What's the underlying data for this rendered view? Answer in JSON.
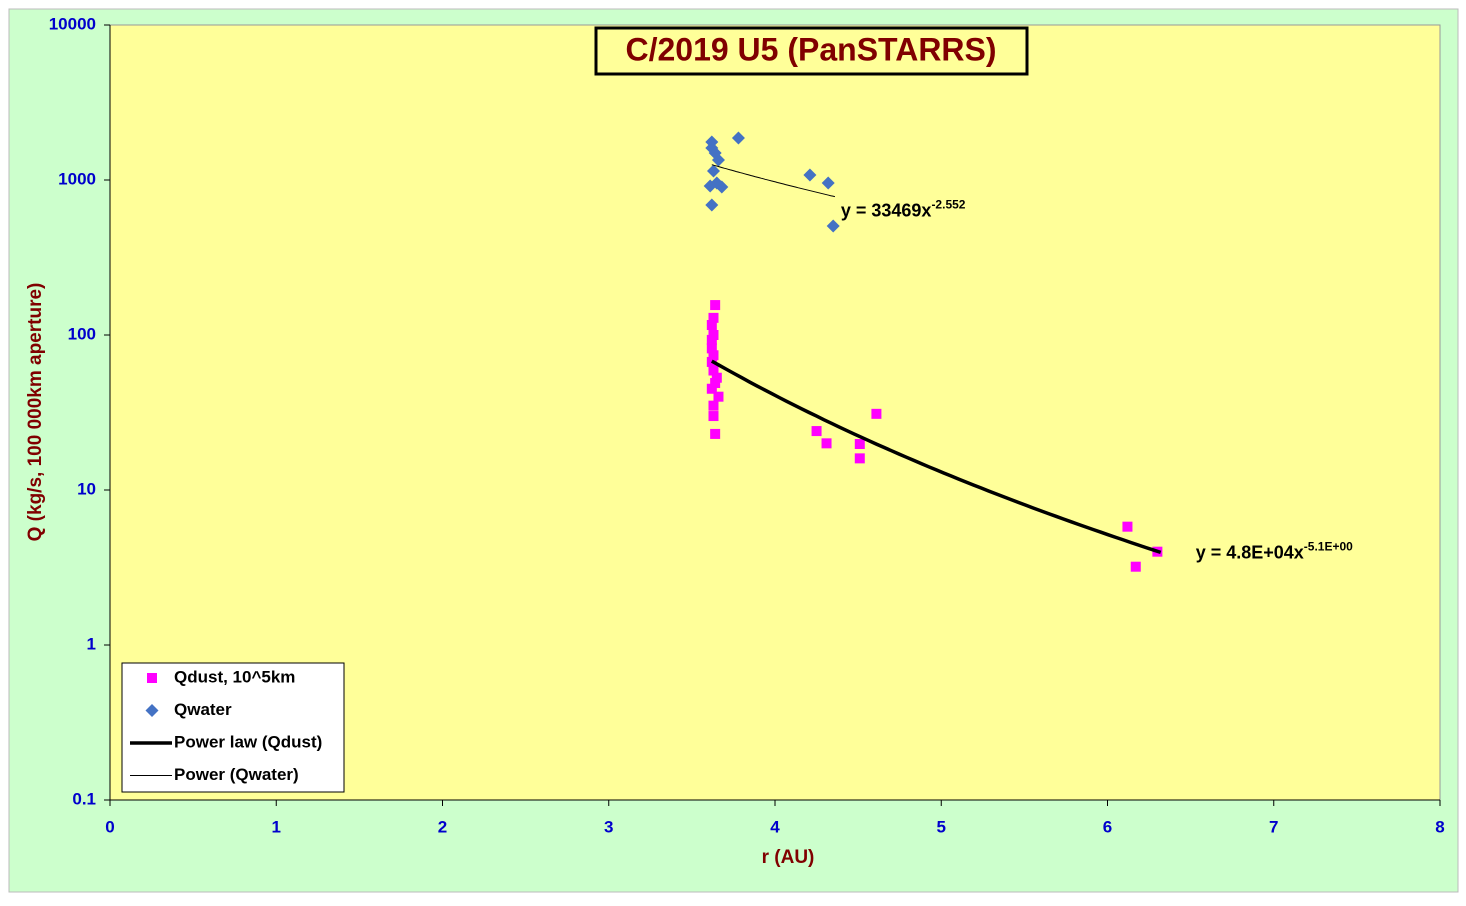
{
  "chart_data": {
    "type": "scatter",
    "title": "C/2019 U5 (PanSTARRS)",
    "xlabel": "r (AU)",
    "ylabel": "Q (kg/s, 100 000km aperture)",
    "xlim": [
      0,
      8
    ],
    "xticks": [
      0,
      1,
      2,
      3,
      4,
      5,
      6,
      7,
      8
    ],
    "ylim": [
      0.1,
      10000
    ],
    "yticks": [
      0.1,
      1,
      10,
      100,
      1000,
      10000
    ],
    "yscale": "log",
    "grid": false,
    "legend": "lower-left",
    "series": [
      {
        "name": "Qdust, 10^5km",
        "kind": "marker",
        "marker": "square",
        "color": "#ff00ff",
        "x": [
          3.64,
          3.63,
          3.62,
          3.63,
          3.62,
          3.62,
          3.63,
          3.62,
          3.63,
          3.65,
          3.64,
          3.62,
          3.66,
          3.63,
          3.63,
          3.64,
          4.25,
          4.31,
          4.51,
          4.51,
          4.61,
          6.12,
          6.3,
          6.17
        ],
        "values": [
          156,
          129,
          116,
          100,
          93,
          82,
          74,
          67,
          59,
          53,
          49,
          45,
          40,
          35,
          30,
          23,
          24,
          20,
          19.8,
          16,
          31,
          5.8,
          4.0,
          3.2
        ]
      },
      {
        "name": "Qwater",
        "kind": "marker",
        "marker": "diamond",
        "color": "#4472c4",
        "x": [
          3.62,
          3.62,
          3.64,
          3.66,
          3.63,
          3.61,
          3.65,
          3.68,
          3.62,
          3.78,
          4.21,
          4.32,
          4.35
        ],
        "values": [
          1758,
          1608,
          1494,
          1346,
          1143,
          915,
          957,
          902,
          690,
          1866,
          1077,
          957,
          505
        ]
      },
      {
        "name": "Power law (Qdust)",
        "kind": "trend",
        "color": "#000000",
        "width": 3.5,
        "coefficient": 48000,
        "exponent": -5.1,
        "x_range": [
          3.62,
          6.32
        ],
        "equation": "y = 4.8E+04x",
        "equation_exponent": "-5.1E+00"
      },
      {
        "name": "Power (Qwater)",
        "kind": "trend",
        "color": "#000000",
        "width": 1,
        "coefficient": 33469,
        "exponent": -2.552,
        "x_range": [
          3.62,
          4.36
        ],
        "equation": "y = 33469x",
        "equation_exponent": "-2.552"
      }
    ]
  }
}
